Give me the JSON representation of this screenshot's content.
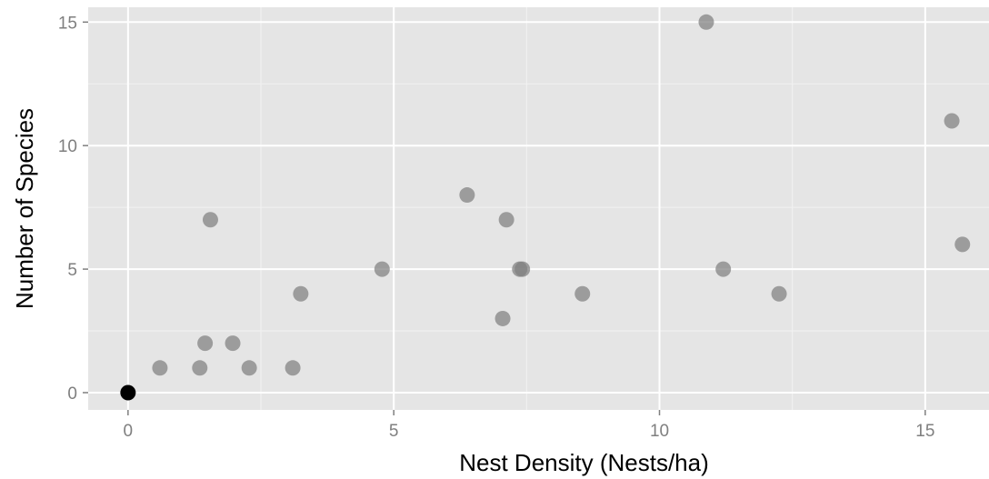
{
  "chart_data": {
    "type": "scatter",
    "title": "",
    "xlabel": "Nest Density (Nests/ha)",
    "ylabel": "Number of Species",
    "xlim": [
      -0.75,
      16.2
    ],
    "ylim": [
      -0.7,
      15.6
    ],
    "x_ticks": [
      0,
      5,
      10,
      15
    ],
    "y_ticks": [
      0,
      5,
      10,
      15
    ],
    "x_tick_labels": [
      "0",
      "5",
      "10",
      "15"
    ],
    "y_tick_labels": [
      "0",
      "5",
      "10",
      "15"
    ],
    "grid": true,
    "legend": "none",
    "background_color": "#e5e5e5",
    "grid_major_color": "#ffffff",
    "grid_minor_color": "#f2f2f2",
    "point_color": "#7f7f7f",
    "point_opacity": 0.72,
    "highlight_point_color": "#000000",
    "series": [
      {
        "points": [
          {
            "x": 0.6,
            "y": 1
          },
          {
            "x": 1.35,
            "y": 1
          },
          {
            "x": 1.45,
            "y": 2
          },
          {
            "x": 1.55,
            "y": 7
          },
          {
            "x": 1.97,
            "y": 2
          },
          {
            "x": 2.28,
            "y": 1
          },
          {
            "x": 3.1,
            "y": 1
          },
          {
            "x": 3.25,
            "y": 4
          },
          {
            "x": 4.78,
            "y": 5
          },
          {
            "x": 6.38,
            "y": 8
          },
          {
            "x": 7.05,
            "y": 3
          },
          {
            "x": 7.12,
            "y": 7
          },
          {
            "x": 7.37,
            "y": 5
          },
          {
            "x": 7.42,
            "y": 5
          },
          {
            "x": 8.55,
            "y": 4
          },
          {
            "x": 10.88,
            "y": 15
          },
          {
            "x": 11.2,
            "y": 5
          },
          {
            "x": 12.25,
            "y": 4
          },
          {
            "x": 15.5,
            "y": 11
          },
          {
            "x": 15.7,
            "y": 6
          }
        ]
      },
      {
        "highlight": true,
        "points": [
          {
            "x": 0.0,
            "y": 0
          }
        ]
      }
    ]
  }
}
